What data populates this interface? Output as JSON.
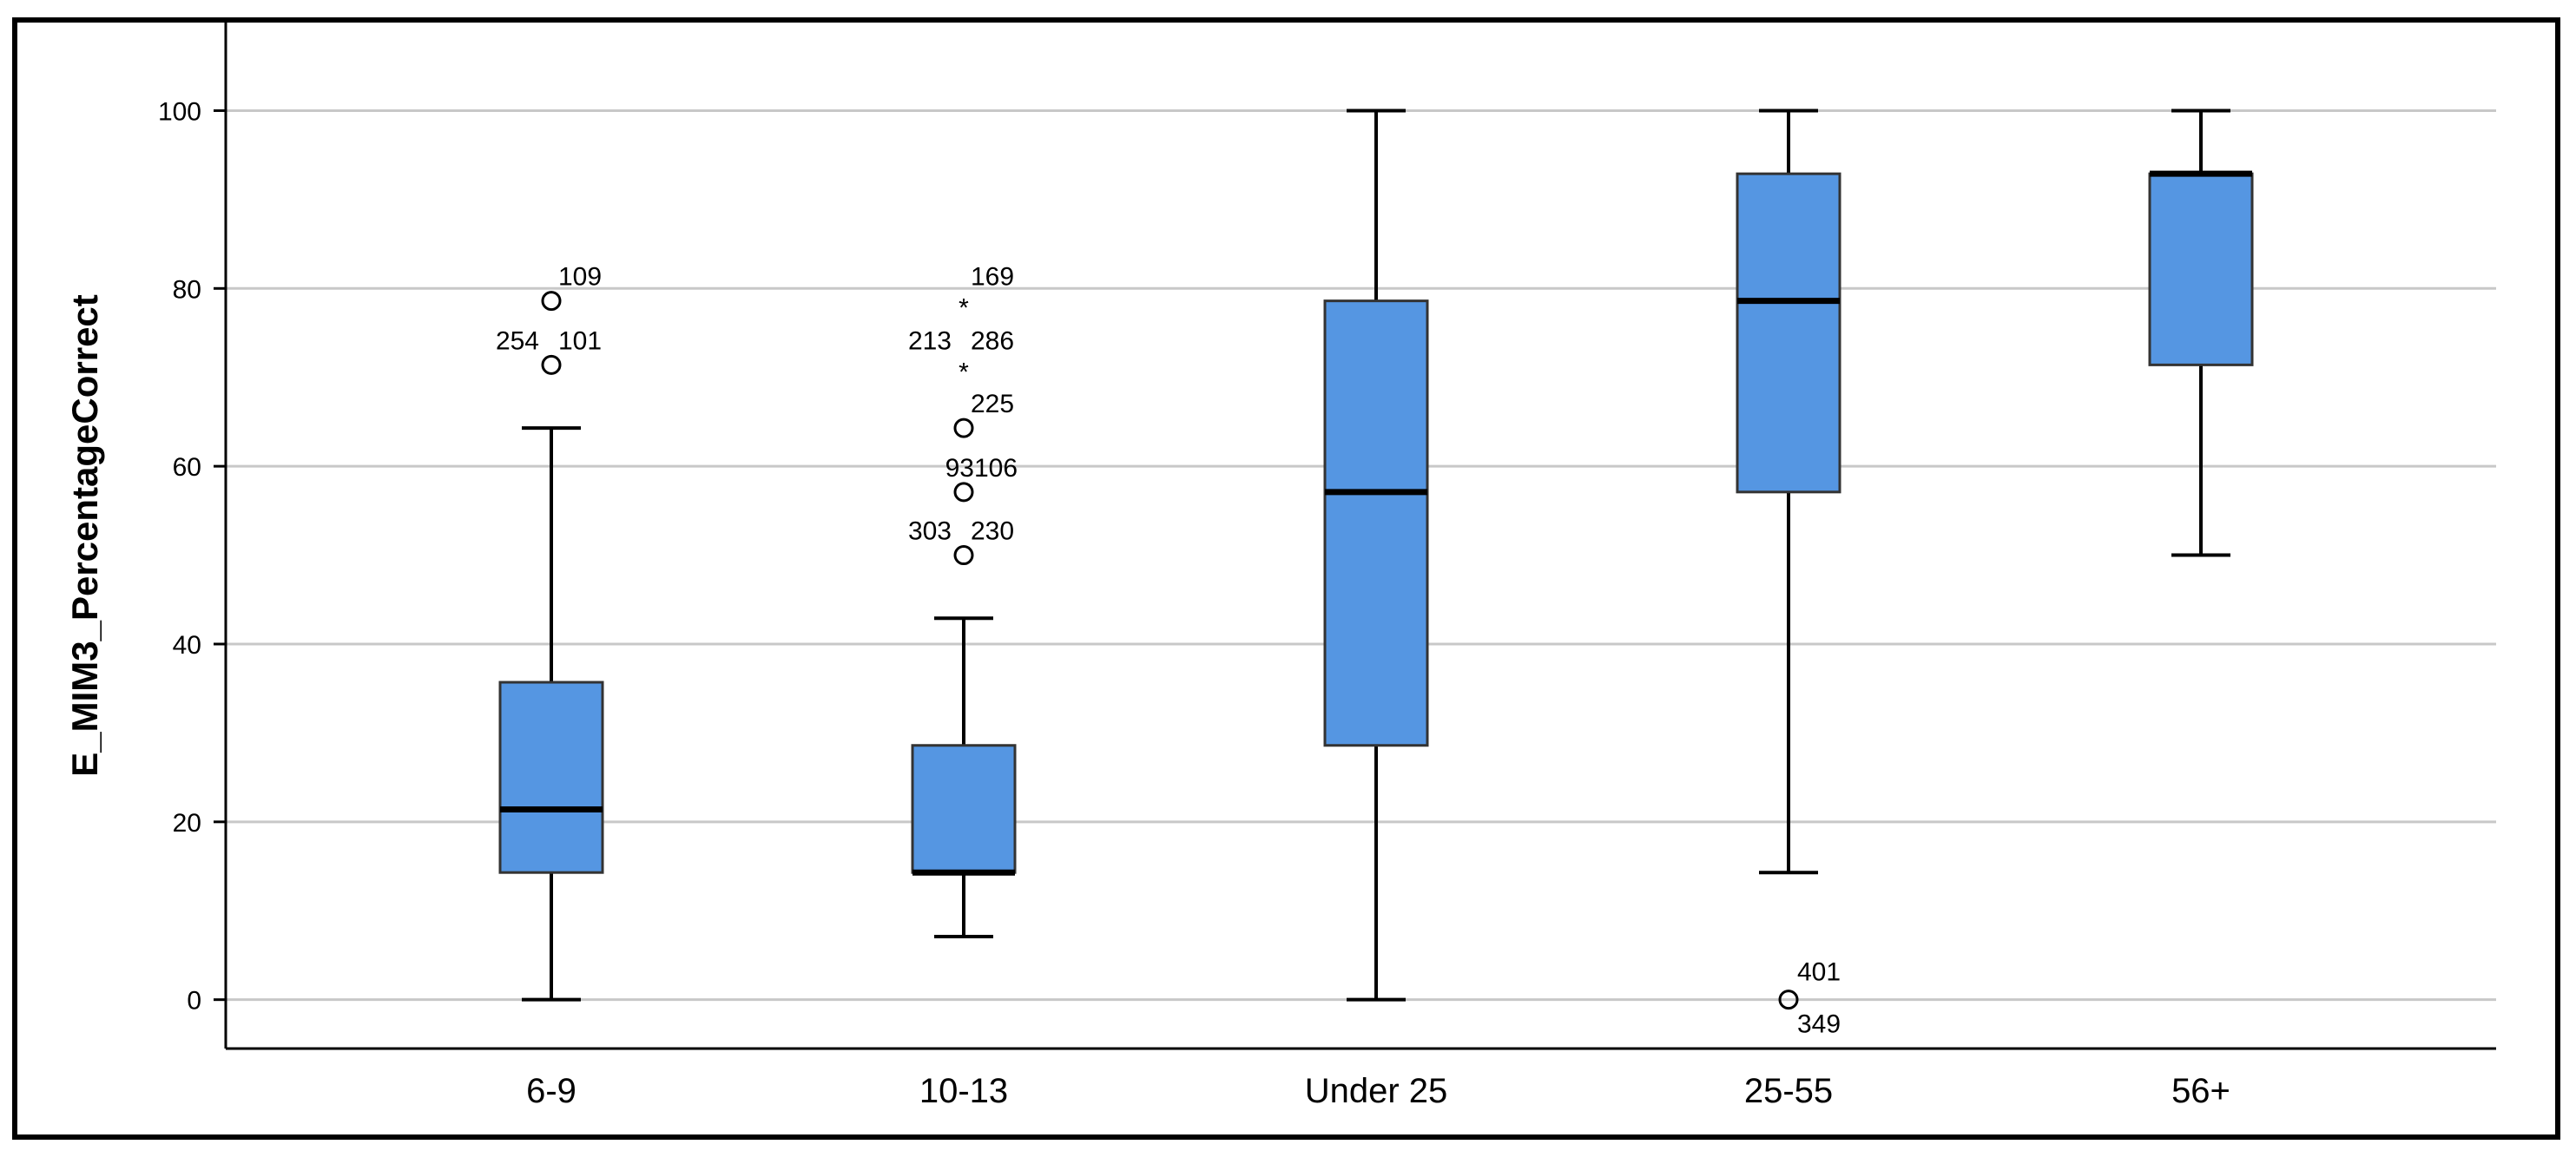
{
  "chart_data": {
    "type": "boxplot",
    "title": "",
    "xlabel": "",
    "ylabel": "E_MIM3_PercentageCorrect",
    "ylim": [
      -5.5,
      106
    ],
    "yticks": [
      "0",
      "20",
      "40",
      "60",
      "80",
      "100"
    ],
    "grid": true,
    "box_color": "#5596E2",
    "categories": [
      "6-9",
      "10-13",
      "Under 25",
      "25-55",
      "56+"
    ],
    "boxes": [
      {
        "category": "6-9",
        "whisker_low": 0,
        "q1": 14.3,
        "median": 21.4,
        "q3": 35.7,
        "whisker_high": 64.3
      },
      {
        "category": "10-13",
        "whisker_low": 7.1,
        "q1": 14.3,
        "median": 14.3,
        "q3": 28.6,
        "whisker_high": 42.9
      },
      {
        "category": "Under 25",
        "whisker_low": 0,
        "q1": 28.6,
        "median": 57.1,
        "q3": 78.6,
        "whisker_high": 100
      },
      {
        "category": "25-55",
        "whisker_low": 14.3,
        "q1": 57.1,
        "median": 78.6,
        "q3": 92.9,
        "whisker_high": 100
      },
      {
        "category": "56+",
        "whisker_low": 50,
        "q1": 71.4,
        "median": 92.9,
        "q3": 92.9,
        "whisker_high": 100
      }
    ],
    "outliers": [
      {
        "category": "6-9",
        "value": 78.6,
        "marker": "circle",
        "labels": [
          "109"
        ],
        "label_side": "right"
      },
      {
        "category": "6-9",
        "value": 71.4,
        "marker": "circle",
        "labels": [
          "254",
          "101"
        ],
        "label_side": "both"
      },
      {
        "category": "10-13",
        "value": 78.6,
        "marker": "star",
        "labels": [
          "169"
        ],
        "label_side": "right"
      },
      {
        "category": "10-13",
        "value": 71.4,
        "marker": "star",
        "labels": [
          "213",
          "286"
        ],
        "label_side": "both"
      },
      {
        "category": "10-13",
        "value": 64.3,
        "marker": "circle",
        "labels": [
          "225"
        ],
        "label_side": "right"
      },
      {
        "category": "10-13",
        "value": 57.1,
        "marker": "circle",
        "labels": [
          "93",
          "106"
        ],
        "label_side": "pair-above"
      },
      {
        "category": "10-13",
        "value": 50,
        "marker": "circle",
        "labels": [
          "303",
          "230"
        ],
        "label_side": "both"
      },
      {
        "category": "25-55",
        "value": 0,
        "marker": "circle",
        "labels": [
          "401",
          "349"
        ],
        "label_side": "above-below"
      }
    ]
  }
}
